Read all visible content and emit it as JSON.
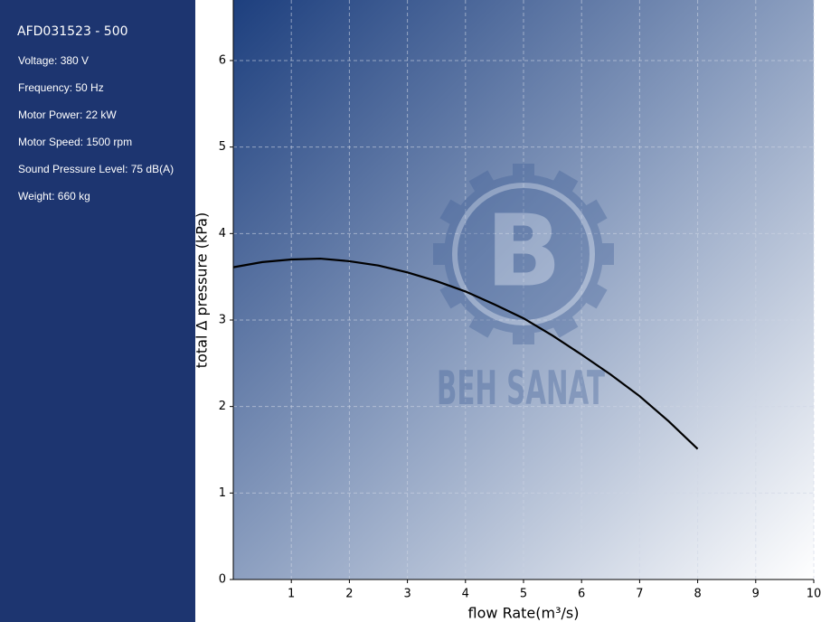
{
  "sidebar": {
    "title": "AFD031523 - 500",
    "specs": [
      "Voltage: 380 V",
      "Frequency: 50 Hz",
      "Motor Power: 22 kW",
      "Motor Speed: 1500 rpm",
      "Sound Pressure Level: 75 dB(A)",
      "Weight: 660 kg"
    ]
  },
  "watermark": {
    "letter": "B",
    "text": "BEH SANAT"
  },
  "chart_data": {
    "type": "line",
    "x_label": "flow Rate(m³/s)",
    "y_label": "total Δ pressure (kPa)",
    "xlim": [
      0,
      10
    ],
    "ylim": [
      0,
      6.7
    ],
    "xticks": [
      1,
      2,
      3,
      4,
      5,
      6,
      7,
      8,
      9,
      10
    ],
    "yticks": [
      0,
      1,
      2,
      3,
      4,
      5,
      6
    ],
    "grid": true,
    "x": [
      0,
      0.5,
      1,
      1.5,
      2,
      2.5,
      3,
      3.5,
      4,
      4.5,
      5,
      5.5,
      6,
      6.5,
      7,
      7.5,
      8
    ],
    "series": [
      {
        "color": "#000000",
        "values": [
          3.61,
          3.67,
          3.7,
          3.71,
          3.68,
          3.63,
          3.55,
          3.45,
          3.33,
          3.18,
          3.02,
          2.82,
          2.6,
          2.37,
          2.12,
          1.83,
          1.51
        ]
      }
    ]
  }
}
